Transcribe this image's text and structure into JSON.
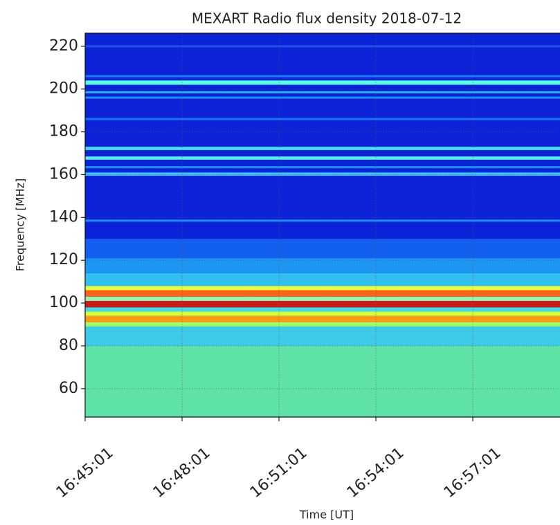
{
  "chart_data": {
    "type": "spectrogram",
    "title": "MEXART Radio flux density 2018-07-12",
    "xlabel": "Time [UT]",
    "ylabel": "Frequency [MHz]",
    "xlim": [
      60301,
      61183
    ],
    "xticks": [
      {
        "value": 60301,
        "label": "16:45:01"
      },
      {
        "value": 60481,
        "label": "16:48:01"
      },
      {
        "value": 60661,
        "label": "16:51:01"
      },
      {
        "value": 60841,
        "label": "16:54:01"
      },
      {
        "value": 61021,
        "label": "16:57:01"
      }
    ],
    "ylim": [
      46.7,
      226.1
    ],
    "yticks": [
      60,
      80,
      100,
      120,
      140,
      160,
      180,
      200,
      220
    ],
    "grid": true,
    "bands": [
      {
        "from": 46.7,
        "to": 226.1,
        "color": "#0b22d6"
      },
      {
        "from": 46.7,
        "to": 80,
        "color": "#5fe2a6"
      },
      {
        "from": 80,
        "to": 89,
        "color": "#3ccbe6"
      },
      {
        "from": 89,
        "to": 91,
        "color": "#9cff70"
      },
      {
        "from": 91,
        "to": 94,
        "color": "#ff9a12"
      },
      {
        "from": 94,
        "to": 96,
        "color": "#d6ff3a"
      },
      {
        "from": 96,
        "to": 98,
        "color": "#3fdcf0"
      },
      {
        "from": 98,
        "to": 101,
        "color": "#d01616"
      },
      {
        "from": 101,
        "to": 103,
        "color": "#8cf8b0"
      },
      {
        "from": 103,
        "to": 106,
        "color": "#ff6212"
      },
      {
        "from": 106,
        "to": 108,
        "color": "#e8ff40"
      },
      {
        "from": 108,
        "to": 114,
        "color": "#30c0f0"
      },
      {
        "from": 114,
        "to": 121,
        "color": "#1e96f4"
      },
      {
        "from": 121,
        "to": 130,
        "color": "#1460ee"
      },
      {
        "from": 138,
        "to": 139,
        "color": "#1a8cff"
      },
      {
        "from": 159.5,
        "to": 161,
        "color": "#38c8ff"
      },
      {
        "from": 163,
        "to": 164,
        "color": "#1a90ff"
      },
      {
        "from": 167,
        "to": 168.5,
        "color": "#5cf0e0"
      },
      {
        "from": 171.5,
        "to": 173,
        "color": "#44e2ff"
      },
      {
        "from": 185.5,
        "to": 186.5,
        "color": "#1a70ff"
      },
      {
        "from": 195.5,
        "to": 196.5,
        "color": "#1a90ff"
      },
      {
        "from": 198,
        "to": 199,
        "color": "#22b4ff"
      },
      {
        "from": 202,
        "to": 204,
        "color": "#55ffe4"
      },
      {
        "from": 205.5,
        "to": 206.5,
        "color": "#1a80ff"
      },
      {
        "from": 219.5,
        "to": 220.5,
        "color": "#1a50f0"
      }
    ]
  }
}
